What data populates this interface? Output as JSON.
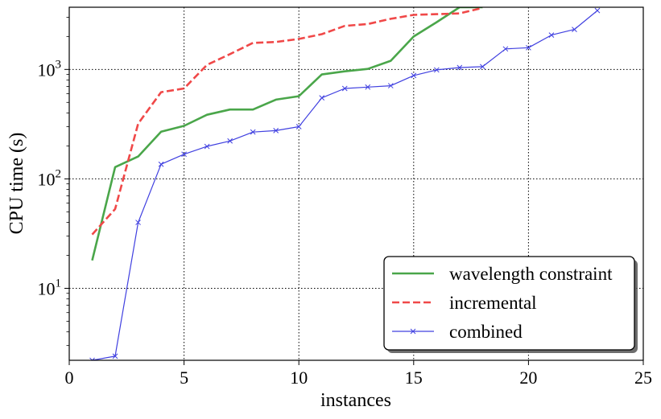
{
  "chart_data": {
    "type": "line",
    "title": "",
    "xlabel": "instances",
    "ylabel": "CPU time (s)",
    "xlim": [
      0,
      25
    ],
    "ylim": [
      2.2,
      3700
    ],
    "yscale": "log",
    "xticks": [
      0,
      5,
      10,
      15,
      20,
      25
    ],
    "yticks": [
      {
        "value": 10,
        "label_base": "10",
        "label_exp": "1"
      },
      {
        "value": 100,
        "label_base": "10",
        "label_exp": "2"
      },
      {
        "value": 1000,
        "label_base": "10",
        "label_exp": "3"
      }
    ],
    "grid": true,
    "legend_position": "lower-right",
    "series": [
      {
        "name": "wavelength constraint",
        "color": "#4aa64a",
        "style": "solid",
        "marker": "none",
        "x": [
          1,
          2,
          3,
          4,
          5,
          6,
          7,
          8,
          9,
          10,
          11,
          12,
          13,
          14,
          15,
          16,
          17,
          18
        ],
        "y": [
          18,
          128,
          160,
          270,
          305,
          385,
          430,
          430,
          530,
          570,
          900,
          960,
          1010,
          1200,
          2000,
          2700,
          3700,
          3700
        ]
      },
      {
        "name": "incremental",
        "color": "#f04848",
        "style": "dashed",
        "marker": "none",
        "x": [
          1,
          2,
          3,
          4,
          5,
          6,
          7,
          8,
          9,
          10,
          11,
          12,
          13,
          14,
          15,
          16,
          17,
          18
        ],
        "y": [
          31,
          53,
          320,
          620,
          670,
          1100,
          1380,
          1750,
          1780,
          1900,
          2100,
          2500,
          2600,
          2900,
          3150,
          3200,
          3250,
          3650
        ]
      },
      {
        "name": "combined",
        "color": "#4040e0",
        "style": "solid",
        "marker": "x",
        "x": [
          1,
          2,
          3,
          4,
          5,
          6,
          7,
          8,
          9,
          10,
          11,
          12,
          13,
          14,
          15,
          16,
          17,
          18,
          19,
          20,
          21,
          22,
          23
        ],
        "y": [
          2.2,
          2.4,
          40,
          136,
          168,
          198,
          222,
          268,
          276,
          300,
          550,
          670,
          690,
          710,
          880,
          990,
          1040,
          1060,
          1540,
          1580,
          2060,
          2320,
          3450
        ]
      }
    ]
  }
}
